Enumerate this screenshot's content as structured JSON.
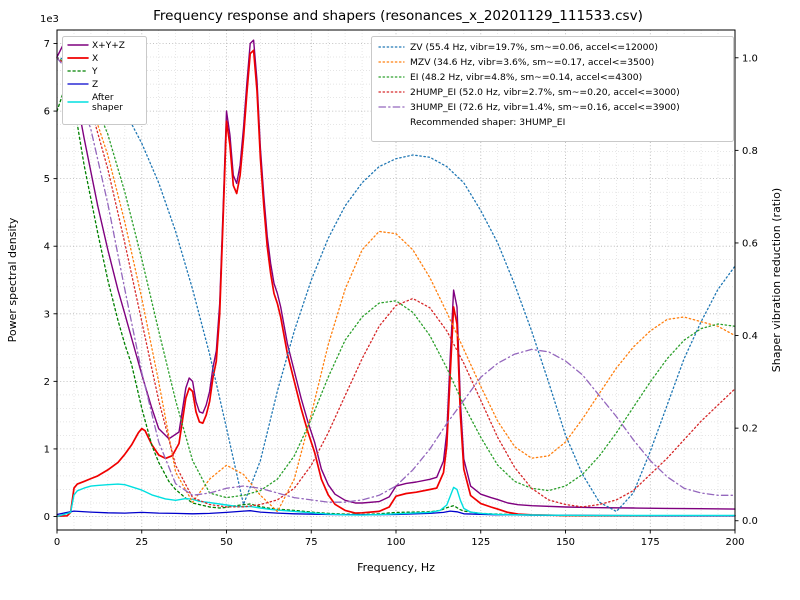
{
  "chart_data": {
    "type": "line",
    "title": "Frequency response and shapers (resonances_x_20201129_111533.csv)",
    "xlabel": "Frequency, Hz",
    "ylabel_left": "Power spectral density",
    "ylabel_right": "Shaper vibration reduction (ratio)",
    "left_axis_offset_label": "1e3",
    "xlim": [
      0,
      200
    ],
    "ylim_left": [
      -200,
      7200
    ],
    "ylim_right": [
      -0.02,
      1.06
    ],
    "x_ticks": {
      "values": [
        0,
        25,
        50,
        75,
        100,
        125,
        150,
        175,
        200
      ],
      "labels": [
        "0",
        "25",
        "50",
        "75",
        "100",
        "125",
        "150",
        "175",
        "200"
      ]
    },
    "y_ticks_left": {
      "values": [
        0,
        1000,
        2000,
        3000,
        4000,
        5000,
        6000,
        7000
      ],
      "labels": [
        "0",
        "1",
        "2",
        "3",
        "4",
        "5",
        "6",
        "7"
      ]
    },
    "y_ticks_right": {
      "values": [
        0,
        0.2,
        0.4,
        0.6,
        0.8,
        1.0
      ],
      "labels": [
        "0.0",
        "0.2",
        "0.4",
        "0.6",
        "0.8",
        "1.0"
      ]
    },
    "grid": {
      "major": true,
      "minor": true,
      "minor_x_step": 5,
      "minor_y_step_left": 200
    },
    "psd_series": [
      {
        "name": "sum",
        "label": "X+Y+Z",
        "color": "#7f007f",
        "style": "solid",
        "width": 1.4,
        "x": [
          0,
          2,
          3,
          5,
          8,
          10,
          12,
          15,
          18,
          20,
          25,
          28,
          30,
          33,
          36,
          38,
          39,
          40,
          41,
          42,
          43,
          44,
          45,
          46,
          47,
          48,
          49,
          50,
          51,
          52,
          53,
          54,
          55,
          56,
          57,
          58,
          59,
          60,
          61,
          62,
          63,
          64,
          65,
          66,
          68,
          70,
          72,
          74,
          76,
          78,
          80,
          82,
          85,
          88,
          90,
          95,
          98,
          100,
          103,
          106,
          110,
          112,
          114,
          115,
          116,
          117,
          118,
          119,
          120,
          122,
          125,
          128,
          130,
          133,
          136,
          140,
          150,
          160,
          170,
          180,
          190,
          200
        ],
        "y": [
          6800,
          7000,
          6900,
          6400,
          5600,
          5100,
          4600,
          3950,
          3350,
          3000,
          2100,
          1600,
          1300,
          1150,
          1250,
          1900,
          2050,
          2000,
          1700,
          1550,
          1530,
          1650,
          1850,
          2200,
          2450,
          3150,
          4550,
          6000,
          5650,
          5050,
          4930,
          5200,
          5750,
          6400,
          7000,
          7050,
          6450,
          5450,
          4750,
          4150,
          3750,
          3450,
          3300,
          3100,
          2550,
          2150,
          1750,
          1400,
          1100,
          700,
          470,
          330,
          240,
          200,
          200,
          220,
          290,
          450,
          490,
          510,
          550,
          580,
          820,
          1250,
          2350,
          3350,
          3100,
          1700,
          850,
          450,
          330,
          280,
          250,
          200,
          175,
          160,
          140,
          130,
          125,
          120,
          115,
          110
        ]
      },
      {
        "name": "x",
        "label": "X",
        "color": "#f00000",
        "style": "solid",
        "width": 1.7,
        "x": [
          0,
          3,
          4,
          5,
          6,
          8,
          10,
          12,
          15,
          18,
          20,
          22,
          24,
          25,
          26,
          28,
          30,
          32,
          34,
          36,
          38,
          39,
          40,
          41,
          42,
          43,
          44,
          45,
          46,
          47,
          48,
          49,
          50,
          51,
          52,
          53,
          54,
          55,
          56,
          57,
          58,
          59,
          60,
          61,
          62,
          63,
          64,
          65,
          66,
          68,
          70,
          72,
          74,
          76,
          78,
          80,
          82,
          85,
          88,
          90,
          95,
          98,
          100,
          103,
          106,
          110,
          112,
          114,
          115,
          116,
          117,
          118,
          119,
          120,
          122,
          125,
          128,
          130,
          133,
          136,
          140,
          150,
          160,
          170,
          180,
          190,
          200
        ],
        "y": [
          5,
          10,
          60,
          420,
          480,
          520,
          560,
          600,
          690,
          800,
          920,
          1060,
          1240,
          1300,
          1270,
          1060,
          910,
          860,
          900,
          1080,
          1750,
          1900,
          1850,
          1550,
          1400,
          1380,
          1500,
          1700,
          2050,
          2300,
          3000,
          4400,
          5850,
          5500,
          4900,
          4780,
          5050,
          5600,
          6250,
          6850,
          6900,
          6300,
          5300,
          4600,
          4000,
          3600,
          3300,
          3150,
          2950,
          2400,
          2000,
          1600,
          1250,
          950,
          550,
          320,
          180,
          90,
          50,
          55,
          75,
          140,
          300,
          340,
          360,
          400,
          420,
          650,
          1050,
          2100,
          3100,
          2850,
          1500,
          700,
          310,
          190,
          140,
          110,
          60,
          35,
          25,
          15,
          12,
          10,
          10,
          10,
          10
        ]
      },
      {
        "name": "y",
        "label": "Y",
        "color": "#008000",
        "style": "shortdash",
        "width": 1.3,
        "x": [
          0,
          3,
          5,
          8,
          10,
          12,
          15,
          18,
          20,
          22,
          25,
          28,
          30,
          33,
          35,
          38,
          40,
          45,
          48,
          50,
          52,
          55,
          57,
          60,
          63,
          65,
          70,
          75,
          80,
          85,
          90,
          95,
          100,
          105,
          110,
          113,
          115,
          117,
          119,
          120,
          125,
          130,
          140,
          150,
          160,
          170,
          180,
          190,
          200
        ],
        "y": [
          6000,
          6450,
          6100,
          5200,
          4700,
          4200,
          3500,
          2900,
          2550,
          2250,
          1600,
          1050,
          800,
          520,
          400,
          270,
          200,
          140,
          125,
          135,
          155,
          175,
          185,
          145,
          120,
          110,
          90,
          65,
          45,
          35,
          30,
          40,
          60,
          65,
          70,
          90,
          130,
          160,
          100,
          80,
          45,
          35,
          20,
          15,
          12,
          10,
          10,
          10,
          10
        ]
      },
      {
        "name": "z",
        "label": "Z",
        "color": "#0000cc",
        "style": "solid",
        "width": 1.3,
        "x": [
          0,
          3,
          5,
          10,
          15,
          20,
          25,
          30,
          35,
          40,
          45,
          50,
          55,
          57,
          60,
          65,
          70,
          80,
          90,
          100,
          110,
          114,
          116,
          118,
          120,
          130,
          140,
          160,
          180,
          200
        ],
        "y": [
          30,
          60,
          80,
          65,
          55,
          50,
          60,
          50,
          45,
          40,
          45,
          60,
          80,
          85,
          65,
          50,
          40,
          30,
          25,
          30,
          45,
          60,
          80,
          70,
          40,
          25,
          20,
          15,
          10,
          10
        ]
      },
      {
        "name": "after-shaper",
        "label": "After shaper",
        "label_lines": [
          "After",
          "shaper"
        ],
        "color": "#00dfe0",
        "style": "solid",
        "width": 1.4,
        "x": [
          0,
          4,
          5,
          6,
          8,
          10,
          12,
          15,
          18,
          20,
          22,
          25,
          28,
          30,
          32,
          35,
          38,
          40,
          42,
          45,
          48,
          50,
          53,
          55,
          57,
          60,
          63,
          65,
          70,
          75,
          80,
          85,
          90,
          95,
          100,
          105,
          110,
          113,
          115,
          116,
          117,
          118,
          119,
          120,
          122,
          125,
          130,
          140,
          150,
          160,
          170,
          180,
          190,
          200
        ],
        "y": [
          0,
          60,
          320,
          380,
          420,
          450,
          460,
          470,
          480,
          470,
          440,
          390,
          320,
          290,
          260,
          240,
          265,
          255,
          225,
          205,
          185,
          170,
          150,
          145,
          150,
          125,
          105,
          95,
          75,
          55,
          35,
          25,
          20,
          28,
          40,
          50,
          60,
          90,
          170,
          300,
          430,
          400,
          240,
          120,
          65,
          45,
          30,
          22,
          18,
          16,
          15,
          15,
          15,
          15
        ]
      }
    ],
    "shaper_series": [
      {
        "name": "zv",
        "label": "ZV (55.4 Hz, vibr=19.7%, sm~=0.06, accel<=12000)",
        "color": "#1f77b4",
        "style": "dotted",
        "width": 1.3,
        "x": [
          0,
          5,
          10,
          15,
          20,
          25,
          30,
          35,
          40,
          45,
          50,
          55,
          60,
          65,
          70,
          75,
          80,
          85,
          90,
          95,
          100,
          105,
          110,
          115,
          120,
          125,
          130,
          135,
          140,
          145,
          150,
          155,
          160,
          165,
          170,
          175,
          180,
          185,
          190,
          195,
          200
        ],
        "y": [
          1.0,
          0.995,
          0.975,
          0.94,
          0.885,
          0.815,
          0.73,
          0.625,
          0.5,
          0.36,
          0.2,
          0.035,
          0.13,
          0.28,
          0.41,
          0.52,
          0.61,
          0.68,
          0.73,
          0.765,
          0.782,
          0.79,
          0.785,
          0.765,
          0.73,
          0.67,
          0.6,
          0.51,
          0.41,
          0.3,
          0.185,
          0.1,
          0.04,
          0.02,
          0.06,
          0.15,
          0.25,
          0.35,
          0.43,
          0.5,
          0.55
        ]
      },
      {
        "name": "mzv",
        "label": "MZV (34.6 Hz, vibr=3.6%, sm~=0.17, accel<=3500)",
        "color": "#ff7f0e",
        "style": "dotted",
        "width": 1.3,
        "x": [
          0,
          5,
          10,
          15,
          20,
          25,
          30,
          35,
          40,
          45,
          50,
          55,
          60,
          65,
          70,
          75,
          80,
          85,
          90,
          95,
          100,
          105,
          110,
          115,
          120,
          125,
          130,
          135,
          140,
          145,
          150,
          155,
          160,
          165,
          170,
          175,
          180,
          185,
          190,
          195,
          200
        ],
        "y": [
          1.0,
          0.975,
          0.9,
          0.79,
          0.645,
          0.48,
          0.3,
          0.105,
          0.04,
          0.09,
          0.12,
          0.1,
          0.055,
          0.02,
          0.09,
          0.23,
          0.38,
          0.5,
          0.585,
          0.625,
          0.62,
          0.585,
          0.525,
          0.45,
          0.37,
          0.29,
          0.215,
          0.16,
          0.135,
          0.14,
          0.17,
          0.22,
          0.275,
          0.33,
          0.375,
          0.41,
          0.435,
          0.44,
          0.43,
          0.42,
          0.4
        ]
      },
      {
        "name": "ei",
        "label": "EI (48.2 Hz, vibr=4.8%, sm~=0.14, accel<=4300)",
        "color": "#2ca02c",
        "style": "dotted",
        "width": 1.3,
        "x": [
          0,
          5,
          10,
          15,
          20,
          25,
          30,
          35,
          40,
          45,
          50,
          55,
          60,
          65,
          70,
          75,
          80,
          85,
          90,
          95,
          100,
          105,
          110,
          115,
          120,
          125,
          130,
          135,
          140,
          145,
          150,
          155,
          160,
          165,
          170,
          175,
          180,
          185,
          190,
          195,
          200
        ],
        "y": [
          1.0,
          0.98,
          0.925,
          0.835,
          0.71,
          0.565,
          0.41,
          0.26,
          0.13,
          0.06,
          0.05,
          0.055,
          0.065,
          0.09,
          0.14,
          0.22,
          0.31,
          0.39,
          0.44,
          0.47,
          0.475,
          0.45,
          0.4,
          0.33,
          0.25,
          0.18,
          0.12,
          0.085,
          0.07,
          0.065,
          0.075,
          0.1,
          0.14,
          0.19,
          0.245,
          0.3,
          0.35,
          0.39,
          0.415,
          0.425,
          0.42
        ]
      },
      {
        "name": "2hump-ei",
        "label": "2HUMP_EI (52.0 Hz, vibr=2.7%, sm~=0.20, accel<=3000)",
        "color": "#d62728",
        "style": "dotted",
        "width": 1.3,
        "x": [
          0,
          5,
          10,
          15,
          20,
          25,
          30,
          35,
          40,
          45,
          50,
          55,
          60,
          65,
          70,
          75,
          80,
          85,
          90,
          95,
          100,
          105,
          110,
          115,
          120,
          125,
          130,
          135,
          140,
          145,
          150,
          155,
          160,
          165,
          170,
          175,
          180,
          185,
          190,
          195,
          200
        ],
        "y": [
          1.0,
          0.97,
          0.89,
          0.76,
          0.6,
          0.43,
          0.26,
          0.12,
          0.05,
          0.035,
          0.03,
          0.03,
          0.035,
          0.045,
          0.07,
          0.12,
          0.19,
          0.27,
          0.35,
          0.42,
          0.465,
          0.48,
          0.46,
          0.41,
          0.34,
          0.26,
          0.18,
          0.115,
          0.07,
          0.045,
          0.035,
          0.03,
          0.035,
          0.045,
          0.065,
          0.1,
          0.135,
          0.175,
          0.215,
          0.25,
          0.285
        ]
      },
      {
        "name": "3hump-ei",
        "label": "3HUMP_EI (72.6 Hz, vibr=1.4%, sm~=0.16, accel<=3900)",
        "color": "#9467bd",
        "style": "dashdot",
        "width": 1.3,
        "x": [
          0,
          5,
          10,
          15,
          20,
          25,
          30,
          35,
          40,
          45,
          50,
          55,
          60,
          65,
          70,
          75,
          80,
          85,
          90,
          95,
          100,
          105,
          110,
          115,
          120,
          125,
          130,
          135,
          140,
          145,
          150,
          155,
          160,
          165,
          170,
          175,
          180,
          185,
          190,
          195,
          200
        ],
        "y": [
          1.0,
          0.955,
          0.845,
          0.685,
          0.5,
          0.32,
          0.17,
          0.08,
          0.055,
          0.06,
          0.07,
          0.075,
          0.07,
          0.06,
          0.05,
          0.045,
          0.04,
          0.04,
          0.045,
          0.055,
          0.075,
          0.11,
          0.155,
          0.21,
          0.26,
          0.31,
          0.34,
          0.36,
          0.37,
          0.365,
          0.345,
          0.315,
          0.27,
          0.225,
          0.175,
          0.13,
          0.095,
          0.07,
          0.06,
          0.055,
          0.055
        ]
      }
    ],
    "recommended_label": "Recommended shaper: 3HUMP_EI"
  }
}
